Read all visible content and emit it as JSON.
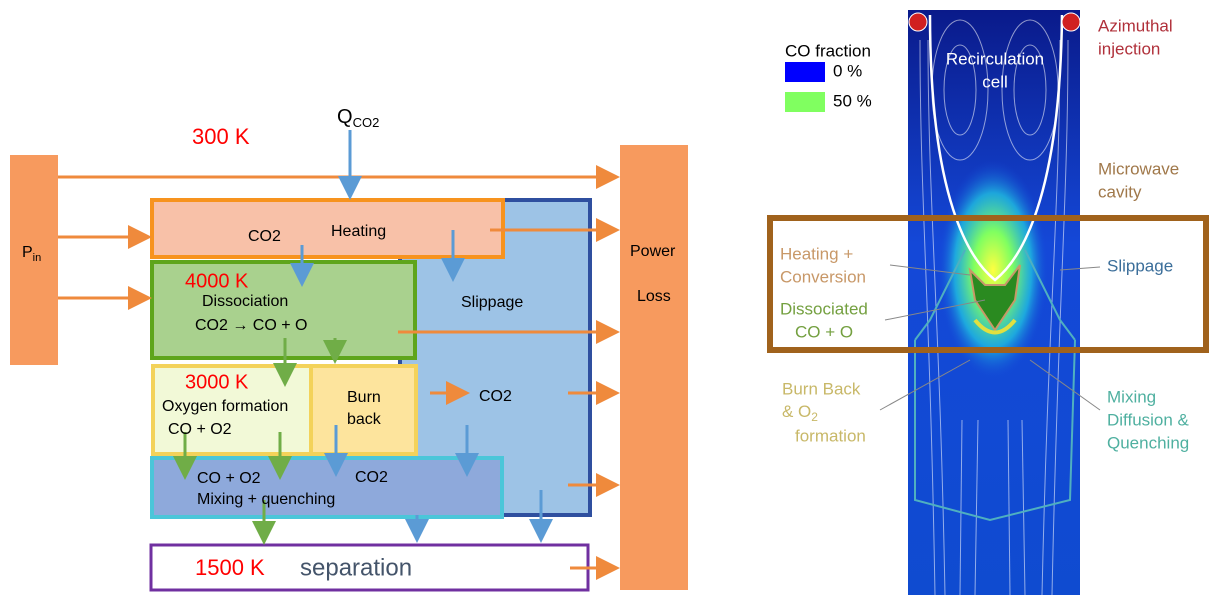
{
  "left": {
    "temp_300": "300 K",
    "q": {
      "main": "Q",
      "sub": "CO2"
    },
    "p_in": {
      "main": "P",
      "sub": "in"
    },
    "power_loss": [
      "Power",
      "Loss"
    ],
    "heating": {
      "species": "CO2",
      "label": "Heating"
    },
    "dissociation": {
      "temp": "4000 K",
      "label": "Dissociation",
      "reaction": "CO2 → CO + O"
    },
    "slippage": {
      "label": "Slippage",
      "species": "CO2"
    },
    "oxygen_formation": {
      "temp": "3000 K",
      "label": "Oxygen formation",
      "species": "CO + O2"
    },
    "burn_back": [
      "Burn",
      "back"
    ],
    "mixing": {
      "species_1": "CO + O2",
      "species_2": "CO2",
      "label": "Mixing + quenching"
    },
    "separation": {
      "temp": "1500 K",
      "label": "separation"
    }
  },
  "right": {
    "legend": {
      "title": "CO fraction",
      "items": [
        "0 %",
        "50 %"
      ]
    },
    "recirculation": [
      "Recirculation",
      "cell"
    ],
    "azimuthal": [
      "Azimuthal",
      "injection"
    ],
    "microwave": [
      "Microwave",
      "cavity"
    ],
    "heating_conversion": [
      "Heating +",
      "Conversion"
    ],
    "slippage": "Slippage",
    "dissociated": [
      "Dissociated",
      "CO + O"
    ],
    "burn_back": {
      "line1": "Burn Back",
      "line2": {
        "main": "& O",
        "sub": "2"
      },
      "line3": "formation"
    },
    "mixing": [
      "Mixing",
      "Diffusion &",
      "Quenching"
    ]
  }
}
